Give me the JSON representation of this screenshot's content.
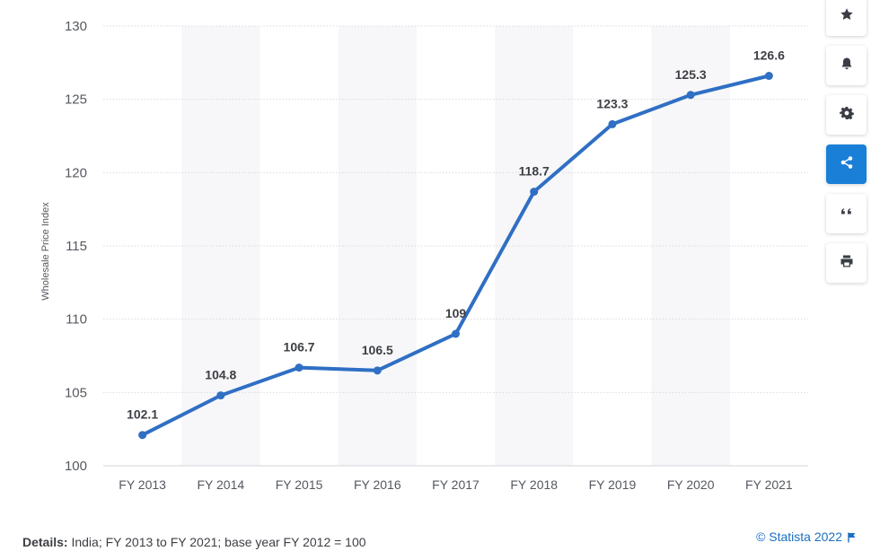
{
  "chart_data": {
    "type": "line",
    "categories": [
      "FY 2013",
      "FY 2014",
      "FY 2015",
      "FY 2016",
      "FY 2017",
      "FY 2018",
      "FY 2019",
      "FY 2020",
      "FY 2021"
    ],
    "values": [
      102.1,
      104.8,
      106.7,
      106.5,
      109,
      118.7,
      123.3,
      125.3,
      126.6
    ],
    "data_labels": [
      "102.1",
      "104.8",
      "106.7",
      "106.5",
      "109",
      "118.7",
      "123.3",
      "125.3",
      "126.6"
    ],
    "ylabel": "Wholesale Price Index",
    "xlabel": "",
    "ylim": [
      100,
      130
    ],
    "yticks": [
      100,
      105,
      110,
      115,
      120,
      125,
      130
    ],
    "grid": true,
    "line_color": "#2f6fc4",
    "legend": "none"
  },
  "toolbar": {
    "items": [
      {
        "name": "star-icon",
        "glyph": "★"
      },
      {
        "name": "bell-icon",
        "glyph": ""
      },
      {
        "name": "gear-icon",
        "glyph": ""
      },
      {
        "name": "share-icon",
        "glyph": "",
        "active": true
      },
      {
        "name": "quote-icon",
        "glyph": "❝"
      },
      {
        "name": "print-icon",
        "glyph": ""
      }
    ],
    "active_color": "#1a7fd6"
  },
  "footer": {
    "details_label": "Details:",
    "details_text": " India; FY 2013 to FY 2021; base year FY 2012 = 100",
    "copyright": "© Statista 2022"
  }
}
